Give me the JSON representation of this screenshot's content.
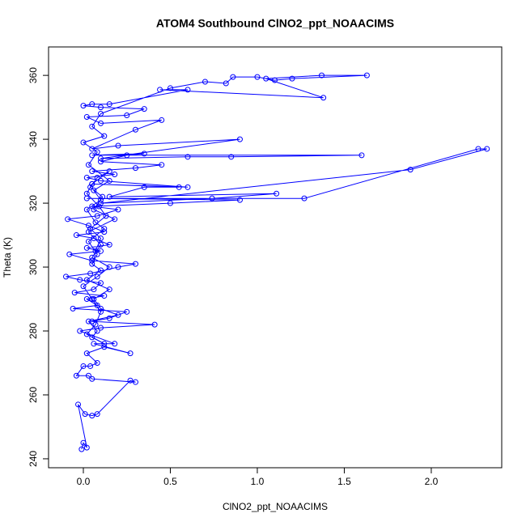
{
  "chart_data": {
    "type": "line",
    "title": "ATOM4 Southbound ClNO2_ppt_NOAACIMS",
    "x_label": "ClNO2_ppt_NOAACIMS",
    "y_label": "Theta (K)",
    "xlim": [
      -0.2,
      2.405
    ],
    "ylim": [
      237.2,
      368.9
    ],
    "xticks": [
      {
        "value": 0,
        "label": "0.0"
      },
      0.5,
      {
        "value": 1,
        "label": "1.0"
      },
      1.5,
      {
        "value": 2,
        "label": "2.0"
      }
    ],
    "yticks": [
      240,
      260,
      280,
      300,
      320,
      340,
      360
    ],
    "x": [
      -0.01,
      0.0,
      0.02,
      -0.03,
      0.01,
      0.05,
      0.08,
      0.27,
      0.3,
      0.05,
      0.03,
      -0.04,
      0.0,
      0.04,
      0.08,
      0.02,
      0.12,
      0.27,
      0.06,
      0.18,
      -0.02,
      0.1,
      0.41,
      0.05,
      0.15,
      0.25,
      -0.06,
      0.08,
      0.02,
      0.12,
      -0.05,
      0.06,
      0.1,
      -0.02,
      -0.1,
      0.04,
      0.2,
      0.3,
      0.05,
      -0.08,
      0.1,
      0.02,
      0.15,
      0.06,
      -0.04,
      0.12,
      0.03,
      -0.09,
      0.08,
      0.2,
      0.05,
      0.5,
      0.9,
      0.02,
      1.27,
      2.27,
      2.32,
      1.88,
      0.1,
      0.74,
      1.11,
      0.15,
      0.35,
      0.55,
      0.05,
      0.6,
      0.1,
      0.02,
      0.18,
      0.05,
      0.3,
      0.45,
      0.1,
      0.25,
      0.35,
      0.05,
      1.6,
      0.85,
      0.6,
      0.1,
      0.9,
      0.2,
      0.05,
      0.3,
      0.45,
      0.1,
      0.02,
      0.25,
      0.35,
      0.1,
      0.0,
      0.05,
      0.15,
      0.6,
      0.44,
      1.38,
      1.05,
      1.37,
      1.63,
      1.2,
      1.1,
      1.0,
      0.86,
      0.82,
      0.7,
      0.5,
      0.1,
      0.05,
      0.12,
      0.0,
      0.08,
      0.03,
      0.15,
      0.06,
      0.1,
      0.02,
      0.07,
      0.12,
      0.03,
      0.08,
      0.05,
      0.1,
      0.02,
      0.15,
      0.06,
      0.1,
      0.2,
      0.03,
      0.08,
      0.05,
      0.12,
      0.02,
      0.07,
      0.1,
      0.05,
      0.0,
      0.08,
      0.15,
      0.05,
      0.1,
      0.03,
      0.18,
      0.06,
      0.11,
      0.04,
      0.08,
      0.15,
      0.05,
      0.02,
      0.09,
      0.13,
      0.04,
      0.1,
      0.07
    ],
    "series": [
      {
        "color": "#0000ff",
        "values": [
          243,
          245,
          243.5,
          257,
          254,
          253.5,
          254,
          264.5,
          264,
          265,
          266,
          266,
          269,
          269,
          270,
          273,
          275,
          273,
          276,
          276,
          280,
          281,
          282,
          283,
          284,
          286,
          287,
          288,
          290,
          291,
          292,
          293,
          295,
          296,
          297,
          298,
          300,
          301,
          302,
          304,
          305,
          306,
          307,
          309,
          310,
          311,
          313,
          315,
          316,
          318,
          319,
          320,
          321,
          321.5,
          321.5,
          337,
          337,
          330.5,
          320,
          321.5,
          323,
          322,
          325,
          325,
          326,
          325,
          327,
          328,
          329,
          330,
          331,
          332,
          333,
          335,
          335.5,
          335,
          335,
          334.5,
          334.5,
          334,
          340,
          338,
          337,
          343,
          346,
          345,
          347,
          347.5,
          349.5,
          350,
          350.5,
          351,
          351,
          355.5,
          355.5,
          353,
          359,
          360,
          360,
          359,
          358.5,
          359.5,
          359.5,
          357.5,
          358,
          356,
          348,
          344,
          341,
          339,
          336,
          332,
          327,
          324,
          321,
          318,
          314,
          312,
          308,
          304,
          301,
          299,
          296,
          293,
          290,
          287,
          285,
          283,
          280,
          278,
          276,
          279,
          282,
          286,
          290,
          294,
          297,
          300,
          303,
          307,
          311,
          315,
          318,
          322,
          325,
          328,
          330,
          326,
          323,
          319,
          316,
          312,
          309,
          305
        ]
      }
    ]
  }
}
